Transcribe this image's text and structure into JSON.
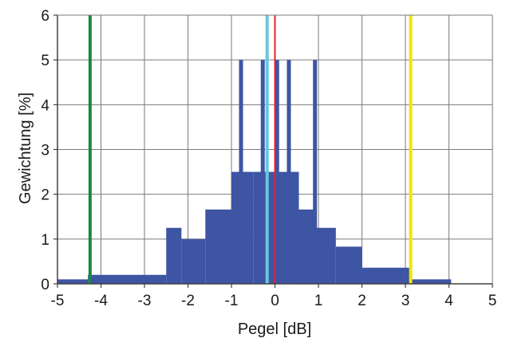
{
  "chart_data": {
    "type": "area",
    "title": "",
    "xlabel": "Pegel [dB]",
    "ylabel": "Gewichtung [%]",
    "xlim": [
      -5,
      5
    ],
    "ylim": [
      0,
      6
    ],
    "x_ticks": [
      "-5",
      "-4",
      "-3",
      "-2",
      "-1",
      "0",
      "1",
      "2",
      "3",
      "4",
      "5"
    ],
    "y_ticks": [
      "0",
      "1",
      "2",
      "3",
      "4",
      "5",
      "6"
    ],
    "grid": true,
    "area_color": "#3d55a3",
    "steps": [
      {
        "x0": -5.0,
        "x1": -4.3,
        "y": 0.1
      },
      {
        "x0": -4.3,
        "x1": -2.5,
        "y": 0.2
      },
      {
        "x0": -2.5,
        "x1": -2.15,
        "y": 1.25
      },
      {
        "x0": -2.15,
        "x1": -1.6,
        "y": 1.0
      },
      {
        "x0": -1.6,
        "x1": -1.0,
        "y": 1.66
      },
      {
        "x0": -1.0,
        "x1": -0.5,
        "y": 2.5
      },
      {
        "x0": -0.5,
        "x1": 0.55,
        "y": 2.5
      },
      {
        "x0": 0.55,
        "x1": 0.9,
        "y": 1.66
      },
      {
        "x0": 0.9,
        "x1": 1.4,
        "y": 1.25
      },
      {
        "x0": 1.4,
        "x1": 2.0,
        "y": 0.83
      },
      {
        "x0": 2.0,
        "x1": 3.1,
        "y": 0.36
      },
      {
        "x0": 3.1,
        "x1": 4.05,
        "y": 0.1
      },
      {
        "x0": 4.05,
        "x1": 5.0,
        "y": 0.0
      }
    ],
    "spikes": [
      {
        "x": -0.78,
        "y": 5
      },
      {
        "x": -0.28,
        "y": 5
      },
      {
        "x": 0.05,
        "y": 5
      },
      {
        "x": 0.32,
        "y": 5
      },
      {
        "x": 0.92,
        "y": 5
      }
    ],
    "vlines": [
      {
        "x": -4.25,
        "color": "#1a8a3a"
      },
      {
        "x": -0.18,
        "color": "#66c8dd"
      },
      {
        "x": 0.0,
        "color": "#e8202a"
      },
      {
        "x": 3.12,
        "color": "#f2e400"
      }
    ]
  }
}
